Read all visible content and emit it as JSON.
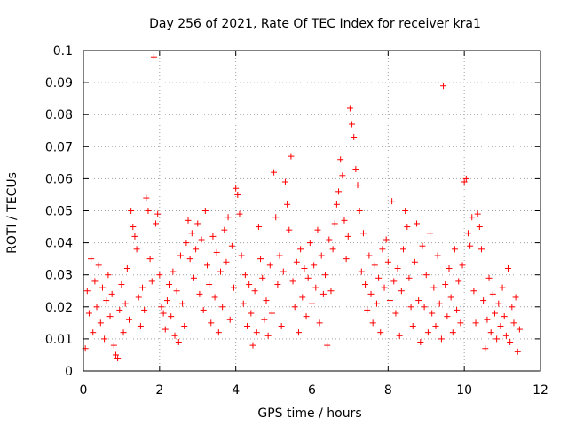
{
  "chart_data": {
    "type": "scatter",
    "title": "Day 256 of 2021, Rate Of TEC Index for receiver kra1",
    "xlabel": "GPS time / hours",
    "ylabel": "ROTI / TECUs",
    "xlim": [
      0,
      12
    ],
    "ylim": [
      0,
      0.1
    ],
    "x_ticks": [
      "0",
      "2",
      "4",
      "6",
      "8",
      "10",
      "12"
    ],
    "y_ticks": [
      "0",
      "0.01",
      "0.02",
      "0.03",
      "0.04",
      "0.05",
      "0.06",
      "0.07",
      "0.08",
      "0.09",
      "0.1"
    ],
    "grid": true,
    "marker": "+",
    "color": "#ff0000",
    "series": [
      {
        "name": "ROTI",
        "points": [
          [
            0.05,
            0.007
          ],
          [
            0.1,
            0.025
          ],
          [
            0.15,
            0.018
          ],
          [
            0.2,
            0.035
          ],
          [
            0.25,
            0.012
          ],
          [
            0.3,
            0.028
          ],
          [
            0.35,
            0.02
          ],
          [
            0.4,
            0.033
          ],
          [
            0.45,
            0.015
          ],
          [
            0.5,
            0.026
          ],
          [
            0.55,
            0.01
          ],
          [
            0.6,
            0.022
          ],
          [
            0.65,
            0.03
          ],
          [
            0.7,
            0.017
          ],
          [
            0.75,
            0.024
          ],
          [
            0.8,
            0.008
          ],
          [
            0.85,
            0.005
          ],
          [
            0.9,
            0.004
          ],
          [
            0.95,
            0.019
          ],
          [
            1.0,
            0.027
          ],
          [
            1.05,
            0.012
          ],
          [
            1.1,
            0.021
          ],
          [
            1.15,
            0.032
          ],
          [
            1.2,
            0.016
          ],
          [
            1.25,
            0.05
          ],
          [
            1.3,
            0.045
          ],
          [
            1.35,
            0.042
          ],
          [
            1.4,
            0.038
          ],
          [
            1.45,
            0.023
          ],
          [
            1.5,
            0.014
          ],
          [
            1.55,
            0.026
          ],
          [
            1.6,
            0.019
          ],
          [
            1.65,
            0.054
          ],
          [
            1.7,
            0.05
          ],
          [
            1.75,
            0.035
          ],
          [
            1.8,
            0.028
          ],
          [
            1.85,
            0.098
          ],
          [
            1.9,
            0.046
          ],
          [
            1.95,
            0.049
          ],
          [
            2.0,
            0.03
          ],
          [
            2.05,
            0.02
          ],
          [
            2.1,
            0.018
          ],
          [
            2.15,
            0.013
          ],
          [
            2.2,
            0.022
          ],
          [
            2.25,
            0.027
          ],
          [
            2.3,
            0.017
          ],
          [
            2.35,
            0.031
          ],
          [
            2.4,
            0.011
          ],
          [
            2.45,
            0.025
          ],
          [
            2.5,
            0.009
          ],
          [
            2.55,
            0.036
          ],
          [
            2.6,
            0.021
          ],
          [
            2.65,
            0.014
          ],
          [
            2.7,
            0.04
          ],
          [
            2.75,
            0.047
          ],
          [
            2.8,
            0.035
          ],
          [
            2.85,
            0.043
          ],
          [
            2.9,
            0.029
          ],
          [
            2.95,
            0.038
          ],
          [
            3.0,
            0.046
          ],
          [
            3.05,
            0.024
          ],
          [
            3.1,
            0.041
          ],
          [
            3.15,
            0.019
          ],
          [
            3.2,
            0.05
          ],
          [
            3.25,
            0.033
          ],
          [
            3.3,
            0.027
          ],
          [
            3.35,
            0.015
          ],
          [
            3.4,
            0.042
          ],
          [
            3.45,
            0.023
          ],
          [
            3.5,
            0.037
          ],
          [
            3.55,
            0.012
          ],
          [
            3.6,
            0.031
          ],
          [
            3.65,
            0.02
          ],
          [
            3.7,
            0.044
          ],
          [
            3.75,
            0.034
          ],
          [
            3.8,
            0.048
          ],
          [
            3.85,
            0.016
          ],
          [
            3.9,
            0.039
          ],
          [
            3.95,
            0.026
          ],
          [
            4.0,
            0.057
          ],
          [
            4.05,
            0.055
          ],
          [
            4.1,
            0.049
          ],
          [
            4.15,
            0.036
          ],
          [
            4.2,
            0.021
          ],
          [
            4.25,
            0.03
          ],
          [
            4.3,
            0.014
          ],
          [
            4.35,
            0.027
          ],
          [
            4.4,
            0.018
          ],
          [
            4.45,
            0.008
          ],
          [
            4.5,
            0.025
          ],
          [
            4.55,
            0.012
          ],
          [
            4.6,
            0.045
          ],
          [
            4.65,
            0.035
          ],
          [
            4.7,
            0.029
          ],
          [
            4.75,
            0.016
          ],
          [
            4.8,
            0.022
          ],
          [
            4.85,
            0.011
          ],
          [
            4.9,
            0.033
          ],
          [
            4.95,
            0.018
          ],
          [
            5.0,
            0.062
          ],
          [
            5.05,
            0.048
          ],
          [
            5.1,
            0.027
          ],
          [
            5.15,
            0.036
          ],
          [
            5.2,
            0.014
          ],
          [
            5.25,
            0.031
          ],
          [
            5.3,
            0.059
          ],
          [
            5.35,
            0.052
          ],
          [
            5.4,
            0.044
          ],
          [
            5.45,
            0.067
          ],
          [
            5.5,
            0.028
          ],
          [
            5.55,
            0.02
          ],
          [
            5.6,
            0.034
          ],
          [
            5.65,
            0.012
          ],
          [
            5.7,
            0.038
          ],
          [
            5.75,
            0.023
          ],
          [
            5.8,
            0.032
          ],
          [
            5.85,
            0.017
          ],
          [
            5.9,
            0.029
          ],
          [
            5.95,
            0.04
          ],
          [
            6.0,
            0.021
          ],
          [
            6.05,
            0.033
          ],
          [
            6.1,
            0.026
          ],
          [
            6.15,
            0.044
          ],
          [
            6.2,
            0.015
          ],
          [
            6.25,
            0.036
          ],
          [
            6.3,
            0.024
          ],
          [
            6.35,
            0.03
          ],
          [
            6.4,
            0.008
          ],
          [
            6.45,
            0.041
          ],
          [
            6.5,
            0.025
          ],
          [
            6.55,
            0.038
          ],
          [
            6.6,
            0.046
          ],
          [
            6.65,
            0.052
          ],
          [
            6.7,
            0.056
          ],
          [
            6.75,
            0.066
          ],
          [
            6.8,
            0.061
          ],
          [
            6.85,
            0.047
          ],
          [
            6.9,
            0.035
          ],
          [
            6.95,
            0.042
          ],
          [
            7.0,
            0.082
          ],
          [
            7.05,
            0.077
          ],
          [
            7.1,
            0.073
          ],
          [
            7.15,
            0.063
          ],
          [
            7.2,
            0.058
          ],
          [
            7.25,
            0.05
          ],
          [
            7.3,
            0.031
          ],
          [
            7.35,
            0.043
          ],
          [
            7.4,
            0.027
          ],
          [
            7.45,
            0.019
          ],
          [
            7.5,
            0.036
          ],
          [
            7.55,
            0.024
          ],
          [
            7.6,
            0.015
          ],
          [
            7.65,
            0.033
          ],
          [
            7.7,
            0.021
          ],
          [
            7.75,
            0.029
          ],
          [
            7.8,
            0.012
          ],
          [
            7.85,
            0.038
          ],
          [
            7.9,
            0.026
          ],
          [
            7.95,
            0.041
          ],
          [
            8.0,
            0.034
          ],
          [
            8.05,
            0.022
          ],
          [
            8.1,
            0.053
          ],
          [
            8.15,
            0.028
          ],
          [
            8.2,
            0.018
          ],
          [
            8.25,
            0.032
          ],
          [
            8.3,
            0.011
          ],
          [
            8.35,
            0.025
          ],
          [
            8.4,
            0.038
          ],
          [
            8.45,
            0.05
          ],
          [
            8.5,
            0.045
          ],
          [
            8.55,
            0.029
          ],
          [
            8.6,
            0.02
          ],
          [
            8.65,
            0.014
          ],
          [
            8.7,
            0.034
          ],
          [
            8.75,
            0.046
          ],
          [
            8.8,
            0.022
          ],
          [
            8.85,
            0.009
          ],
          [
            8.9,
            0.039
          ],
          [
            8.95,
            0.02
          ],
          [
            9.0,
            0.03
          ],
          [
            9.05,
            0.012
          ],
          [
            9.1,
            0.043
          ],
          [
            9.15,
            0.018
          ],
          [
            9.2,
            0.026
          ],
          [
            9.25,
            0.014
          ],
          [
            9.3,
            0.036
          ],
          [
            9.35,
            0.021
          ],
          [
            9.4,
            0.01
          ],
          [
            9.45,
            0.089
          ],
          [
            9.5,
            0.027
          ],
          [
            9.55,
            0.017
          ],
          [
            9.6,
            0.032
          ],
          [
            9.65,
            0.023
          ],
          [
            9.7,
            0.012
          ],
          [
            9.75,
            0.038
          ],
          [
            9.8,
            0.019
          ],
          [
            9.85,
            0.028
          ],
          [
            9.9,
            0.015
          ],
          [
            9.95,
            0.033
          ],
          [
            10.0,
            0.059
          ],
          [
            10.05,
            0.06
          ],
          [
            10.1,
            0.043
          ],
          [
            10.15,
            0.039
          ],
          [
            10.2,
            0.048
          ],
          [
            10.25,
            0.025
          ],
          [
            10.3,
            0.015
          ],
          [
            10.35,
            0.049
          ],
          [
            10.4,
            0.045
          ],
          [
            10.45,
            0.038
          ],
          [
            10.5,
            0.022
          ],
          [
            10.55,
            0.007
          ],
          [
            10.6,
            0.016
          ],
          [
            10.65,
            0.029
          ],
          [
            10.7,
            0.012
          ],
          [
            10.75,
            0.024
          ],
          [
            10.8,
            0.018
          ],
          [
            10.85,
            0.01
          ],
          [
            10.9,
            0.021
          ],
          [
            10.95,
            0.014
          ],
          [
            11.0,
            0.026
          ],
          [
            11.05,
            0.017
          ],
          [
            11.1,
            0.011
          ],
          [
            11.15,
            0.032
          ],
          [
            11.2,
            0.009
          ],
          [
            11.25,
            0.02
          ],
          [
            11.3,
            0.015
          ],
          [
            11.35,
            0.023
          ],
          [
            11.4,
            0.006
          ],
          [
            11.45,
            0.013
          ]
        ]
      }
    ]
  }
}
